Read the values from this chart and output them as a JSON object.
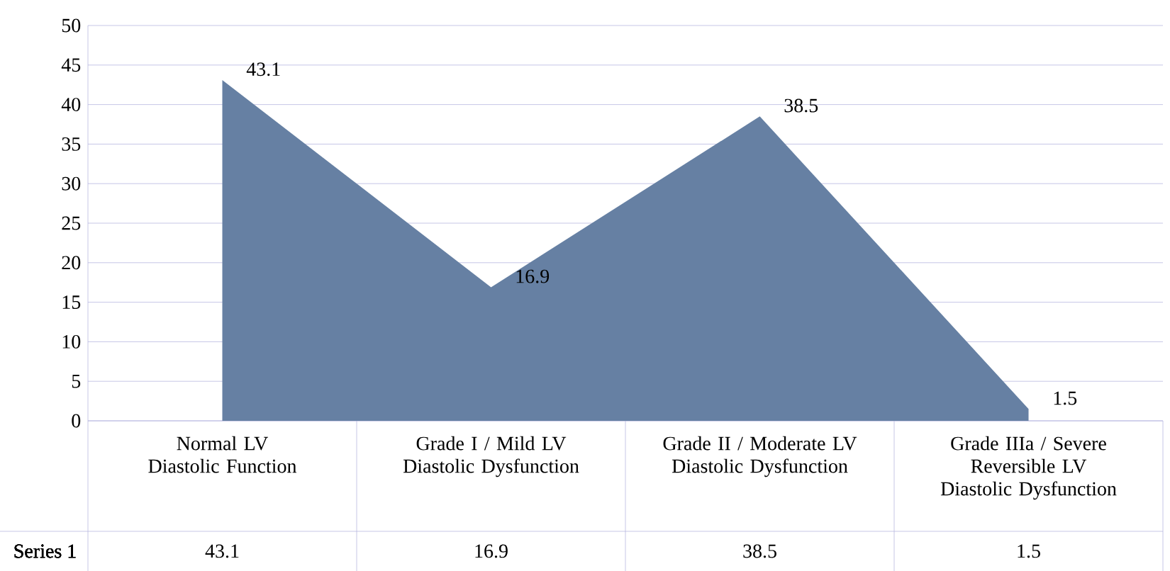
{
  "chart_data": {
    "type": "area",
    "categories": [
      "Normal LV Diastolic Function",
      "Grade I / Mild LV Diastolic Dysfunction",
      "Grade II / Moderate LV Diastolic Dysfunction",
      "Grade IIIa / Severe Reversible LV Diastolic Dysfunction"
    ],
    "series": [
      {
        "name": "Series 1",
        "color": "#6680a3",
        "values": [
          43.1,
          16.9,
          38.5,
          1.5
        ]
      }
    ],
    "annotations": [
      {
        "text": "43.1",
        "x": "Normal LV Diastolic Function",
        "y": 43.1
      },
      {
        "text": "16.9",
        "x": "Grade I / Mild LV Diastolic Dysfunction",
        "y": 16.9
      },
      {
        "text": "38.5",
        "x": "Grade II / Moderate LV Diastolic Dysfunction",
        "y": 38.5
      },
      {
        "text": "1.5",
        "x": "Grade IIIa / Severe Reversible LV Diastolic Dysfunction",
        "y": 1.5
      }
    ],
    "ylim": [
      0,
      50
    ],
    "yticks": [
      0,
      5,
      10,
      15,
      20,
      25,
      30,
      35,
      40,
      45,
      50
    ],
    "grid": "y",
    "data_labels": true
  }
}
